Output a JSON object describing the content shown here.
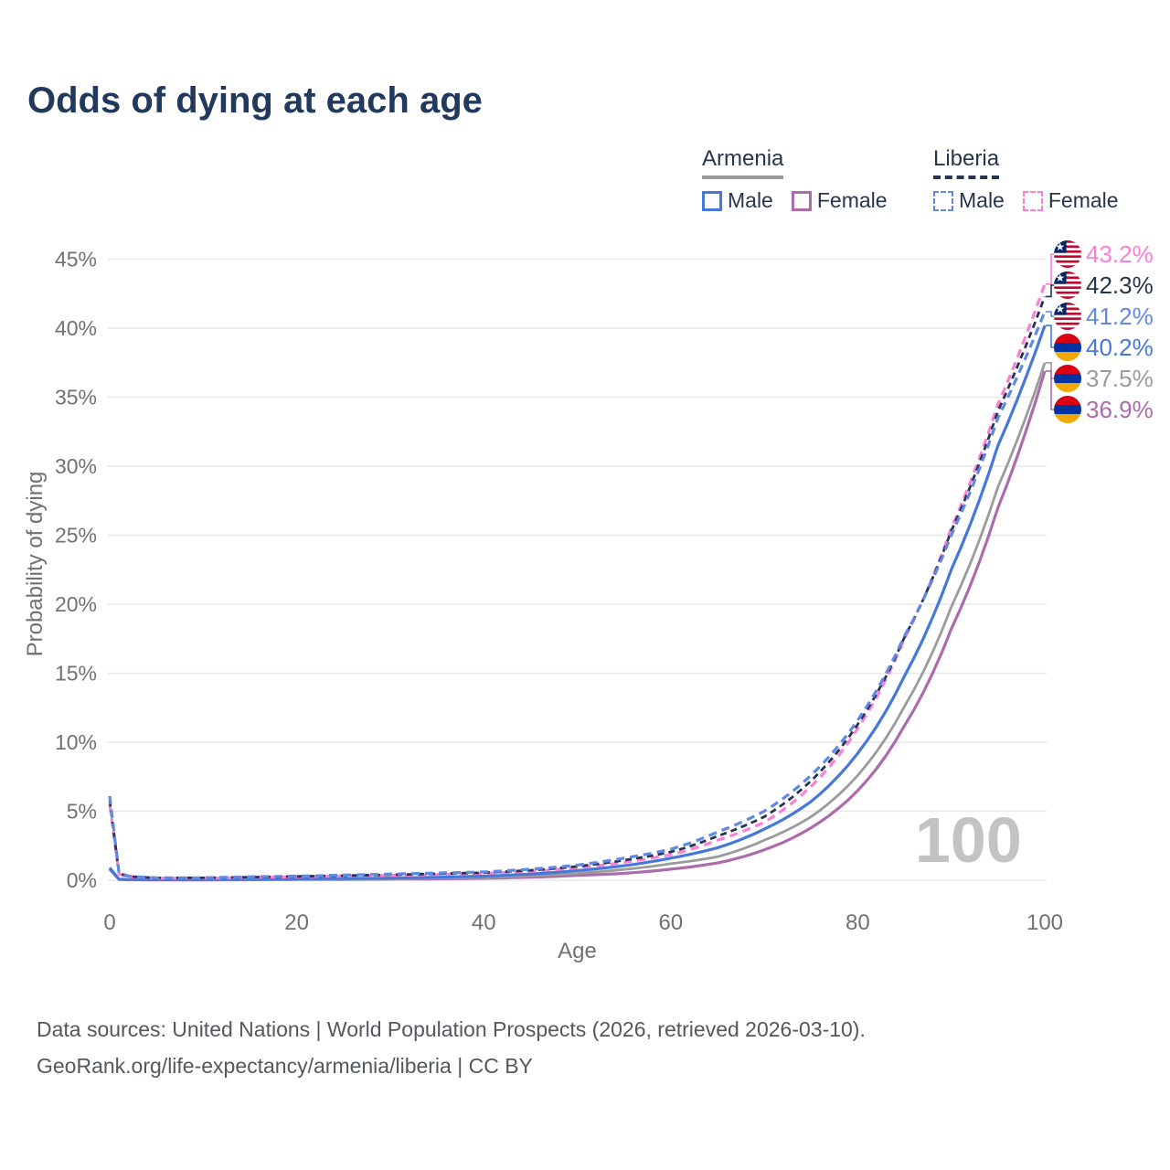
{
  "title": "Odds of dying at each age",
  "watermark_age": "100",
  "legend": {
    "armenia": {
      "name": "Armenia",
      "male": "Male",
      "female": "Female"
    },
    "liberia": {
      "name": "Liberia",
      "male": "Male",
      "female": "Female"
    }
  },
  "footer": {
    "line1": "Data sources: United Nations | World Population Prospects (2026, retrieved 2026-03-10).",
    "line2": "GeoRank.org/life-expectancy/armenia/liberia | CC BY"
  },
  "colors": {
    "armenia_male": "#4678dc",
    "armenia_female": "#ac6cac",
    "armenia_both": "#9b9b9b",
    "liberia_male": "#6189e4",
    "liberia_female": "#fa80d5",
    "liberia_both": "#25344f",
    "title_text": "#22395e",
    "axis_text": "#6f7174",
    "gridline": "#e9e9e9",
    "watermark": "#c3c3c3",
    "footer_text": "#54575c",
    "armenia_flag_red": "#d90012",
    "armenia_flag_blue": "#0033a0",
    "armenia_flag_orange": "#f2a800",
    "liberia_flag_red": "#bf0a30",
    "liberia_flag_blue": "#002868"
  },
  "chart_data": {
    "type": "line",
    "title": "Odds of dying at each age",
    "xlabel": "Age",
    "ylabel": "Probability of dying",
    "xlim": [
      0,
      100
    ],
    "ylim_percent": [
      0,
      45
    ],
    "x_ticks": [
      0,
      20,
      40,
      60,
      80,
      100
    ],
    "y_ticks_percent": [
      0,
      5,
      10,
      15,
      20,
      25,
      30,
      35,
      40,
      45
    ],
    "grid": "horizontal-only",
    "legend_position": "top-right",
    "x": [
      0,
      1,
      2,
      5,
      10,
      15,
      20,
      25,
      30,
      35,
      40,
      45,
      50,
      55,
      60,
      65,
      70,
      75,
      80,
      85,
      90,
      95,
      100
    ],
    "series": [
      {
        "name": "Armenia Female",
        "country": "Armenia",
        "sex": "Female",
        "color_key": "armenia_female",
        "color": "#ac6cac",
        "dashed": false,
        "end_label": "36.9%",
        "values": [
          0.8,
          0.06,
          0.035,
          0.025,
          0.025,
          0.04,
          0.05,
          0.06,
          0.08,
          0.1,
          0.14,
          0.22,
          0.35,
          0.5,
          0.8,
          1.25,
          2.2,
          3.8,
          6.5,
          11.2,
          18.2,
          27.0,
          36.9
        ]
      },
      {
        "name": "Armenia",
        "country": "Armenia",
        "sex": "Both",
        "color_key": "armenia_both",
        "color": "#9b9b9b",
        "dashed": false,
        "end_label": "37.5%",
        "values": [
          0.85,
          0.07,
          0.04,
          0.03,
          0.03,
          0.05,
          0.07,
          0.09,
          0.11,
          0.15,
          0.2,
          0.32,
          0.5,
          0.78,
          1.2,
          1.7,
          2.9,
          4.6,
          7.6,
          12.6,
          19.8,
          28.5,
          37.5
        ]
      },
      {
        "name": "Armenia Male",
        "country": "Armenia",
        "sex": "Male",
        "color_key": "armenia_male",
        "color": "#4678dc",
        "dashed": false,
        "end_label": "40.2%",
        "values": [
          0.9,
          0.08,
          0.05,
          0.04,
          0.04,
          0.07,
          0.1,
          0.13,
          0.16,
          0.22,
          0.3,
          0.45,
          0.7,
          1.05,
          1.6,
          2.35,
          3.7,
          5.7,
          9.2,
          14.8,
          22.5,
          31.5,
          40.2
        ]
      },
      {
        "name": "Liberia Female",
        "country": "Liberia",
        "sex": "Female",
        "color_key": "liberia_female",
        "color": "#fa80d5",
        "dashed": true,
        "end_label": "43.2%",
        "values": [
          5.5,
          0.45,
          0.25,
          0.15,
          0.15,
          0.2,
          0.25,
          0.3,
          0.35,
          0.42,
          0.5,
          0.65,
          0.9,
          1.3,
          1.85,
          2.9,
          4.2,
          6.8,
          11.0,
          17.5,
          25.5,
          34.5,
          43.2
        ]
      },
      {
        "name": "Liberia",
        "country": "Liberia",
        "sex": "Both",
        "color_key": "liberia_both",
        "color": "#25344f",
        "dashed": true,
        "end_label": "42.3%",
        "values": [
          5.8,
          0.5,
          0.28,
          0.17,
          0.17,
          0.22,
          0.28,
          0.33,
          0.4,
          0.47,
          0.55,
          0.72,
          1.0,
          1.45,
          2.05,
          3.2,
          4.6,
          7.2,
          11.3,
          17.6,
          25.3,
          34.0,
          42.3
        ]
      },
      {
        "name": "Liberia Male",
        "country": "Liberia",
        "sex": "Male",
        "color_key": "liberia_male",
        "color": "#6189e4",
        "dashed": true,
        "end_label": "41.2%",
        "values": [
          6.1,
          0.55,
          0.3,
          0.18,
          0.18,
          0.25,
          0.3,
          0.37,
          0.45,
          0.52,
          0.6,
          0.8,
          1.1,
          1.6,
          2.25,
          3.5,
          5.0,
          7.6,
          11.6,
          17.7,
          25.0,
          33.5,
          41.2
        ]
      }
    ]
  }
}
